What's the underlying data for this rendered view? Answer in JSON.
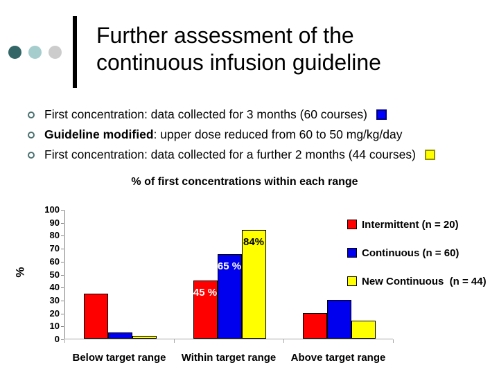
{
  "slide": {
    "decoration": {
      "dot_colors": [
        "#336666",
        "#A6CDCD",
        "#CCCCCC"
      ]
    },
    "title": {
      "line1": "Further assessment of the",
      "line2": "continuous infusion guideline"
    },
    "bullets": [
      {
        "bold": "",
        "text": "First concentration: data collected for 3 months (60 courses)",
        "swatch_color": "#0000FF",
        "swatch_border": "#000080"
      },
      {
        "bold": "Guideline modified",
        "text": ": upper dose reduced from 60 to 50 mg/kg/day",
        "swatch_color": "",
        "swatch_border": ""
      },
      {
        "bold": "",
        "text": "First concentration: data collected for a further 2 months (44 courses)",
        "swatch_color": "#FFFF00",
        "swatch_border": "#909000"
      }
    ]
  },
  "chart_data": {
    "type": "bar",
    "title": "% of first concentrations within each range",
    "xlabel": "",
    "ylabel": "%",
    "ylim": [
      0,
      100
    ],
    "ytick_step": 10,
    "grid": false,
    "legend_position": "right",
    "categories": [
      "Below target range",
      "Within target range",
      "Above target range"
    ],
    "series": [
      {
        "name": "Intermittent (n = 20)",
        "color": "#FF0000",
        "values": [
          35,
          45,
          20
        ],
        "value_labels": [
          "",
          "45 %",
          ""
        ],
        "label_color": "#FFFFFF"
      },
      {
        "name": "Continuous (n = 60)",
        "color": "#0000EE",
        "values": [
          5,
          65,
          30
        ],
        "value_labels": [
          "",
          "65 %",
          ""
        ],
        "label_color": "#FFFFFF"
      },
      {
        "name": "New Continuous  (n = 44)",
        "color": "#FFFF00",
        "values": [
          2,
          84,
          14
        ],
        "value_labels": [
          "",
          "84%",
          ""
        ],
        "label_color": "#000000"
      }
    ]
  }
}
